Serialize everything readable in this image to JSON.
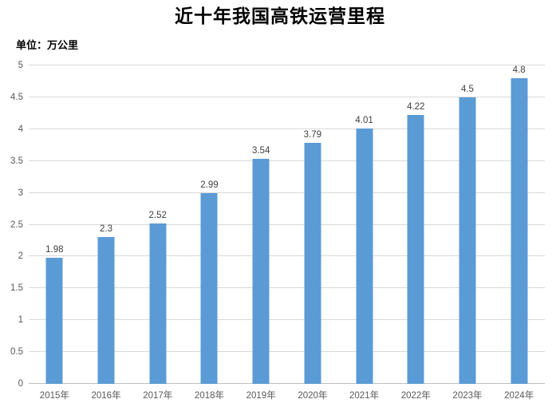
{
  "chart": {
    "title": "近十年我国高铁运营里程",
    "unit_label": "单位：万公里"
  },
  "chart_data": {
    "type": "bar",
    "title": "近十年我国高铁运营里程",
    "unit": "万公里",
    "categories": [
      "2015年",
      "2016年",
      "2017年",
      "2018年",
      "2019年",
      "2020年",
      "2021年",
      "2022年",
      "2023年",
      "2024年"
    ],
    "values": [
      1.98,
      2.3,
      2.52,
      2.99,
      3.54,
      3.79,
      4.01,
      4.22,
      4.5,
      4.8
    ],
    "data_labels": [
      "1.98",
      "2.3",
      "2.52",
      "2.99",
      "3.54",
      "3.79",
      "4.01",
      "4.22",
      "4.5",
      "4.8"
    ],
    "xlabel": "",
    "ylabel": "",
    "ylim": [
      0,
      5
    ],
    "ytick_step": 0.5,
    "yticks": [
      0,
      0.5,
      1,
      1.5,
      2,
      2.5,
      3,
      3.5,
      4,
      4.5,
      5
    ],
    "ytick_labels": [
      "0",
      "0.5",
      "1",
      "1.5",
      "2",
      "2.5",
      "3",
      "3.5",
      "4",
      "4.5",
      "5"
    ],
    "grid": true,
    "legend": "none",
    "colors": {
      "bar": "#5b9bd5",
      "gridline": "#d9d9d9",
      "axis_line": "#bfbfbf",
      "tick_label": "#595959",
      "data_label": "#404040",
      "title": "#000000",
      "background": "#ffffff"
    }
  }
}
